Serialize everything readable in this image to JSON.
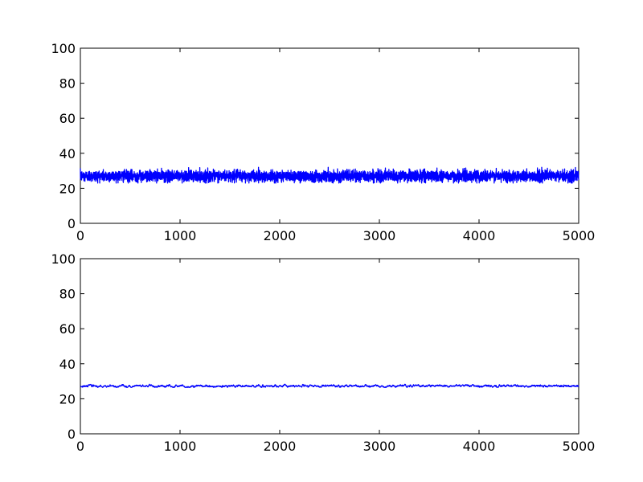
{
  "chart_data": [
    {
      "type": "line",
      "title": "",
      "xlabel": "",
      "ylabel": "",
      "xlim": [
        0,
        5000
      ],
      "ylim": [
        0,
        100
      ],
      "xticks": [
        "0",
        "1000",
        "2000",
        "3000",
        "4000",
        "5000"
      ],
      "yticks": [
        "0",
        "20",
        "40",
        "60",
        "80",
        "100"
      ],
      "grid": false,
      "series": [
        {
          "color": "#0000ff",
          "n_points": 5000,
          "mean": 27,
          "min": 23,
          "max": 32,
          "description": "noisy signal fluctuating around 27 across x = 0 to 5000"
        }
      ]
    },
    {
      "type": "line",
      "title": "",
      "xlabel": "",
      "ylabel": "",
      "xlim": [
        0,
        5000
      ],
      "ylim": [
        0,
        100
      ],
      "xticks": [
        "0",
        "1000",
        "2000",
        "3000",
        "4000",
        "5000"
      ],
      "yticks": [
        "0",
        "20",
        "40",
        "60",
        "80",
        "100"
      ],
      "grid": false,
      "series": [
        {
          "color": "#0000ff",
          "n_points": 5000,
          "mean": 27.3,
          "min": 26.5,
          "max": 28.3,
          "description": "smoothed signal nearly flat around 27.3 across x = 0 to 5000"
        }
      ]
    }
  ]
}
